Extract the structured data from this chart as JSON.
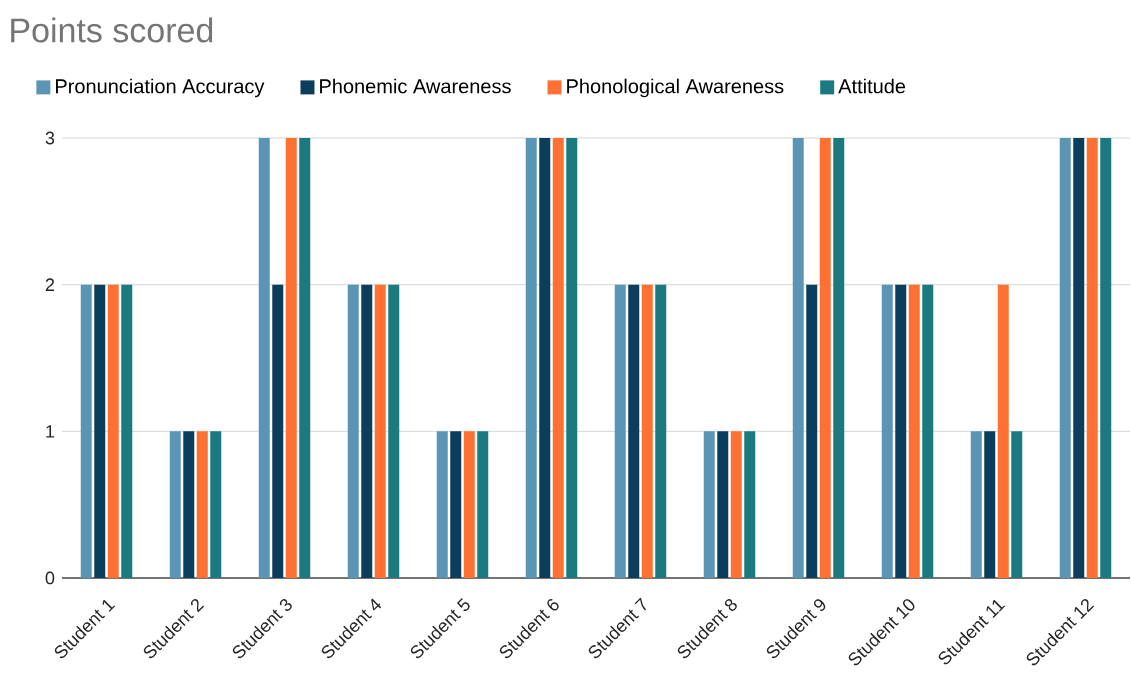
{
  "chart_data": {
    "type": "bar",
    "title": "Points scored",
    "categories": [
      "Student 1",
      "Student 2",
      "Student 3",
      "Student 4",
      "Student 5",
      "Student 6",
      "Student 7",
      "Student 8",
      "Student 9",
      "Student 10",
      "Student 11",
      "Student 12"
    ],
    "series": [
      {
        "name": "Pronunciation Accuracy",
        "color": "#5b95b5",
        "values": [
          2,
          1,
          3,
          2,
          1,
          3,
          2,
          1,
          3,
          2,
          1,
          3
        ]
      },
      {
        "name": "Phonemic Awareness",
        "color": "#0b3d5c",
        "values": [
          2,
          1,
          2,
          2,
          1,
          3,
          2,
          1,
          2,
          2,
          1,
          3
        ]
      },
      {
        "name": "Phonological Awareness",
        "color": "#ff7033",
        "values": [
          2,
          1,
          3,
          2,
          1,
          3,
          2,
          1,
          3,
          2,
          2,
          3
        ]
      },
      {
        "name": "Attitude",
        "color": "#1a7a80",
        "values": [
          2,
          1,
          3,
          2,
          1,
          3,
          2,
          1,
          3,
          2,
          1,
          3
        ]
      }
    ],
    "ylim": [
      0,
      3
    ],
    "yticks": [
      0,
      1,
      2,
      3
    ],
    "grid": "y",
    "legend": "top left"
  }
}
